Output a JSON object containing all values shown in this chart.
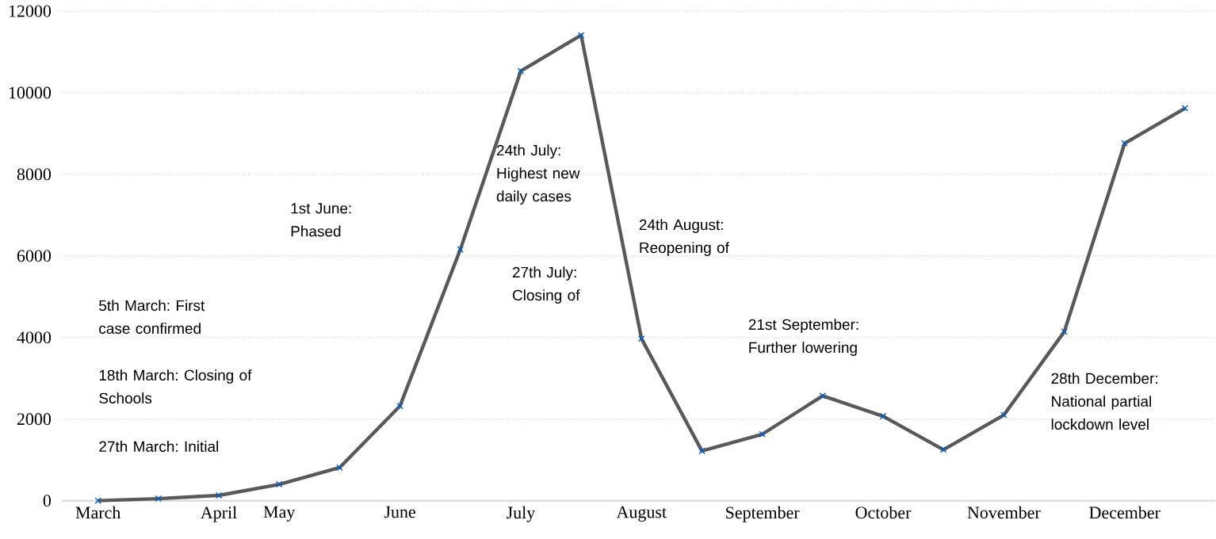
{
  "chart_data": {
    "type": "line",
    "categories": [
      "March",
      null,
      "April",
      "May",
      null,
      "June",
      null,
      "July",
      null,
      "August",
      null,
      "September",
      null,
      "October",
      null,
      "November",
      null,
      "December",
      null
    ],
    "series": [
      {
        "color": "#595959",
        "values": [
          0,
          50,
          130,
          400,
          810,
          2320,
          6160,
          10530,
          11410,
          3970,
          1220,
          1630,
          2570,
          2070,
          1250,
          2100,
          4140,
          8760,
          9620
        ]
      }
    ],
    "ylim": [
      0,
      12000
    ],
    "yticks": [
      0,
      2000,
      4000,
      6000,
      8000,
      10000,
      12000
    ],
    "grid": "y",
    "marker": "cross",
    "line_style": "solid",
    "annotations": [
      "5th March: First case confirmed",
      "18th March: Closing of Schools",
      "27th March: Initial",
      "1st June: Phased",
      "24th July: Highest new daily cases",
      "27th July: Closing of",
      "24th August: Reopening of",
      "21st September: Further lowering",
      "28th December: National partial lockdown level"
    ]
  }
}
